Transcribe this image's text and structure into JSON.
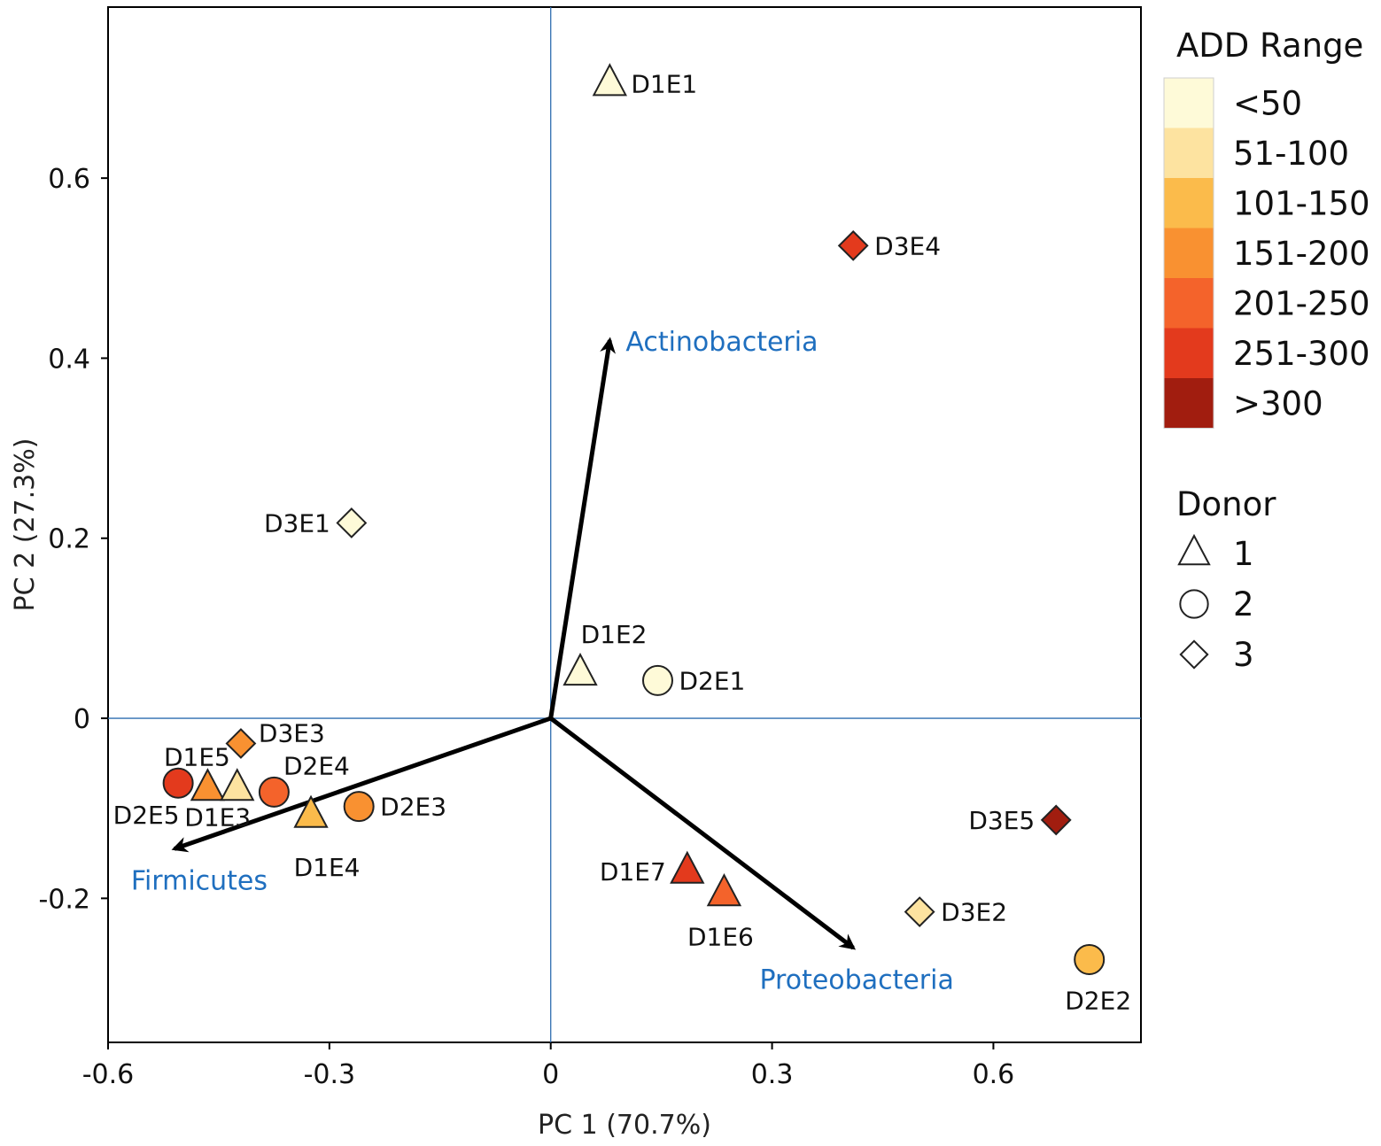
{
  "chart_data": {
    "type": "scatter",
    "subtype": "pca-biplot",
    "title": "",
    "xlabel": "PC 1 (70.7%)",
    "ylabel": "PC 2 (27.3%)",
    "xlim": [
      -0.6,
      0.8
    ],
    "ylim": [
      -0.36,
      0.79
    ],
    "xticks": [
      {
        "value": -0.6,
        "label": "-0.6"
      },
      {
        "value": -0.3,
        "label": "-0.3"
      },
      {
        "value": 0,
        "label": "0"
      },
      {
        "value": 0.3,
        "label": "0.3"
      },
      {
        "value": 0.6,
        "label": "0.6"
      }
    ],
    "yticks": [
      {
        "value": 0.6,
        "label": "0.6"
      },
      {
        "value": 0.4,
        "label": "0.4"
      },
      {
        "value": 0.2,
        "label": "0.2"
      },
      {
        "value": 0,
        "label": "0"
      },
      {
        "value": -0.2,
        "label": "-0.2"
      }
    ],
    "reference_lines": {
      "x": 0,
      "y": 0,
      "color": "#2e6db0"
    },
    "add_ranges": [
      {
        "label": "<50",
        "color": "#fefad8"
      },
      {
        "label": "51-100",
        "color": "#fde3a0"
      },
      {
        "label": "101-150",
        "color": "#fbbb4b"
      },
      {
        "label": "151-200",
        "color": "#f99131"
      },
      {
        "label": "201-250",
        "color": "#f4632b"
      },
      {
        "label": "251-300",
        "color": "#e33a1d"
      },
      {
        "label": ">300",
        "color": "#a11d0f"
      }
    ],
    "donors": [
      {
        "label": "1",
        "shape": "triangle"
      },
      {
        "label": "2",
        "shape": "circle"
      },
      {
        "label": "3",
        "shape": "diamond"
      }
    ],
    "points": [
      {
        "label": "D1E1",
        "x": 0.08,
        "y": 0.705,
        "shape": "triangle",
        "add": "<50",
        "label_pos": "right"
      },
      {
        "label": "D3E4",
        "x": 0.41,
        "y": 0.525,
        "shape": "diamond",
        "add": "251-300",
        "label_pos": "right"
      },
      {
        "label": "D3E1",
        "x": -0.27,
        "y": 0.217,
        "shape": "diamond",
        "add": "<50",
        "label_pos": "left"
      },
      {
        "label": "D1E2",
        "x": 0.04,
        "y": 0.05,
        "shape": "triangle",
        "add": "<50",
        "label_pos": "above"
      },
      {
        "label": "D2E1",
        "x": 0.145,
        "y": 0.042,
        "shape": "circle",
        "add": "<50",
        "label_pos": "right"
      },
      {
        "label": "D3E3",
        "x": -0.42,
        "y": -0.028,
        "shape": "diamond",
        "add": "151-200",
        "label_pos": "upper-right"
      },
      {
        "label": "D2E4",
        "x": -0.375,
        "y": -0.082,
        "shape": "circle",
        "add": "201-250",
        "label_pos": "above"
      },
      {
        "label": "D1E5",
        "x": -0.465,
        "y": -0.078,
        "shape": "triangle",
        "add": "151-200",
        "label_pos": "upper-left"
      },
      {
        "label": "D2E5",
        "x": -0.505,
        "y": -0.072,
        "shape": "circle",
        "add": "251-300",
        "label_pos": "below"
      },
      {
        "label": "D1E3",
        "x": -0.425,
        "y": -0.078,
        "shape": "triangle",
        "add": "51-100",
        "label_pos": "below-left"
      },
      {
        "label": "D1E4",
        "x": -0.325,
        "y": -0.108,
        "shape": "triangle",
        "add": "101-150",
        "label_pos": "below"
      },
      {
        "label": "D2E3",
        "x": -0.26,
        "y": -0.098,
        "shape": "circle",
        "add": "151-200",
        "label_pos": "right"
      },
      {
        "label": "D3E5",
        "x": 0.685,
        "y": -0.113,
        "shape": "diamond",
        "add": ">300",
        "label_pos": "left"
      },
      {
        "label": "D1E7",
        "x": 0.185,
        "y": -0.17,
        "shape": "triangle",
        "add": "251-300",
        "label_pos": "left"
      },
      {
        "label": "D1E6",
        "x": 0.235,
        "y": -0.195,
        "shape": "triangle",
        "add": "201-250",
        "label_pos": "below"
      },
      {
        "label": "D3E2",
        "x": 0.5,
        "y": -0.215,
        "shape": "diamond",
        "add": "51-100",
        "label_pos": "right"
      },
      {
        "label": "D2E2",
        "x": 0.73,
        "y": -0.268,
        "shape": "circle",
        "add": "101-150",
        "label_pos": "below"
      }
    ],
    "loadings": [
      {
        "label": "Actinobacteria",
        "x": 0.08,
        "y": 0.42,
        "label_pos": "right"
      },
      {
        "label": "Firmicutes",
        "x": -0.51,
        "y": -0.145,
        "label_pos": "below"
      },
      {
        "label": "Proteobacteria",
        "x": 0.41,
        "y": -0.255,
        "label_pos": "below"
      }
    ],
    "loading_label_color": "#1f6fbf",
    "legend": {
      "add_title": "ADD Range",
      "donor_title": "Donor",
      "placement": "right"
    }
  }
}
